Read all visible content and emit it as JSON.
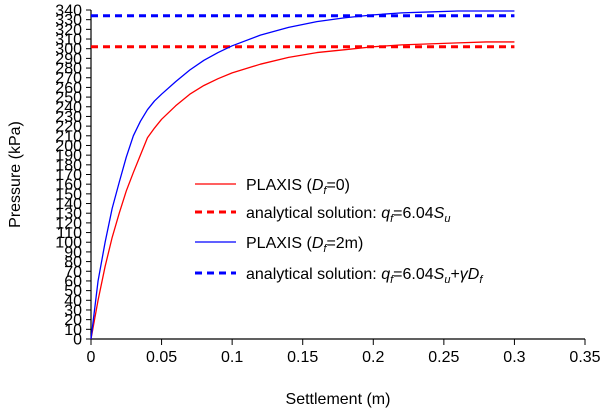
{
  "chart_data": {
    "type": "line",
    "xlabel": "Settlement (m)",
    "ylabel": "Pressure (kPa)",
    "xlim": [
      0,
      0.35
    ],
    "ylim": [
      0,
      340
    ],
    "x_ticks": [
      0,
      0.05,
      0.1,
      0.15,
      0.2,
      0.25,
      0.3,
      0.35
    ],
    "x_tick_labels": [
      "0",
      "0.05",
      "0.1",
      "0.15",
      "0.2",
      "0.25",
      "0.3",
      "0.35"
    ],
    "y_ticks": [
      0,
      10,
      20,
      30,
      40,
      50,
      60,
      70,
      80,
      90,
      100,
      110,
      120,
      130,
      140,
      150,
      160,
      170,
      180,
      190,
      200,
      210,
      220,
      230,
      240,
      250,
      260,
      270,
      280,
      290,
      300,
      310,
      320,
      330,
      340
    ],
    "y_tick_labels": [
      "0",
      "10",
      "20",
      "30",
      "40",
      "50",
      "60",
      "70",
      "80",
      "90",
      "100",
      "110",
      "120",
      "130",
      "140",
      "150",
      "160",
      "170",
      "180",
      "190",
      "200",
      "210",
      "220",
      "230",
      "240",
      "250",
      "260",
      "270",
      "280",
      "290",
      "300",
      "310",
      "320",
      "330",
      "340"
    ],
    "grid": false,
    "legend_position": "center-right",
    "series": [
      {
        "name": "PLAXIS (Df=0)",
        "legend": {
          "pre": "PLAXIS (",
          "var": "D",
          "sub": "f",
          "post": "=0)"
        },
        "color": "#ff0000",
        "style": "solid",
        "x": [
          0,
          0.005,
          0.01,
          0.015,
          0.02,
          0.025,
          0.03,
          0.035,
          0.04,
          0.045,
          0.05,
          0.06,
          0.07,
          0.08,
          0.09,
          0.1,
          0.12,
          0.14,
          0.16,
          0.18,
          0.2,
          0.22,
          0.24,
          0.26,
          0.28,
          0.3
        ],
        "y": [
          0,
          40,
          75,
          105,
          130,
          153,
          172,
          190,
          208,
          218,
          227,
          241,
          253,
          262,
          269,
          275,
          284,
          291,
          296,
          299,
          302,
          304,
          305,
          306,
          307,
          307
        ]
      },
      {
        "name": "analytical solution: qf=6.04Su",
        "legend": {
          "pre": "analytical solution: ",
          "var": "q",
          "sub": "f",
          "mid": "=6.04",
          "var2": "S",
          "sub2": "u"
        },
        "color": "#ff0000",
        "style": "dashed",
        "x": [
          0,
          0.3
        ],
        "y": [
          302,
          302
        ]
      },
      {
        "name": "PLAXIS (Df=2m)",
        "legend": {
          "pre": "PLAXIS (",
          "var": "D",
          "sub": "f",
          "post": "=2m)"
        },
        "color": "#0000ff",
        "style": "solid",
        "x": [
          0,
          0.005,
          0.01,
          0.015,
          0.02,
          0.025,
          0.03,
          0.035,
          0.04,
          0.045,
          0.05,
          0.06,
          0.07,
          0.08,
          0.09,
          0.1,
          0.12,
          0.14,
          0.16,
          0.18,
          0.2,
          0.22,
          0.24,
          0.26,
          0.28,
          0.3
        ],
        "y": [
          0,
          60,
          100,
          135,
          162,
          188,
          210,
          225,
          237,
          246,
          253,
          266,
          278,
          288,
          296,
          303,
          314,
          322,
          328,
          332,
          335,
          337,
          338,
          339,
          339,
          339
        ]
      },
      {
        "name": "analytical solution: qf=6.04Su+γDf",
        "legend": {
          "pre": "analytical solution: ",
          "var": "q",
          "sub": "f",
          "mid": "=6.04",
          "var2": "S",
          "sub2": "u",
          "mid2": "+",
          "var3": "γD",
          "sub3": "f"
        },
        "color": "#0000ff",
        "style": "dashed",
        "x": [
          0,
          0.3
        ],
        "y": [
          334,
          334
        ]
      }
    ]
  }
}
